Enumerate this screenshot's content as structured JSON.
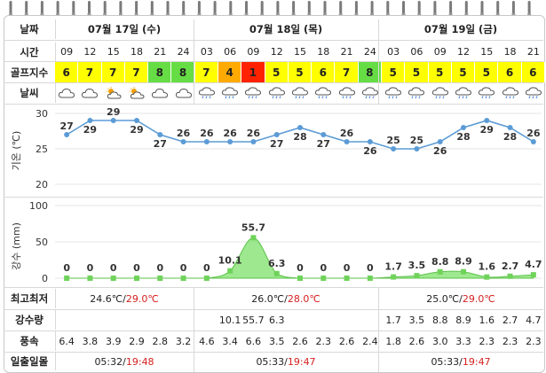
{
  "header": {
    "date_label": "날짜",
    "dates": [
      "07월 17일 (수)",
      "07월 18일 (목)",
      "07월 19일 (금)"
    ]
  },
  "time": {
    "label": "시간",
    "values": [
      "09",
      "12",
      "15",
      "18",
      "21",
      "24",
      "03",
      "06",
      "09",
      "12",
      "15",
      "18",
      "21",
      "24",
      "03",
      "06",
      "09",
      "12",
      "15",
      "18",
      "21"
    ]
  },
  "golf_index": {
    "label": "골프지수",
    "values": [
      "6",
      "7",
      "7",
      "7",
      "8",
      "8",
      "7",
      "4",
      "1",
      "5",
      "5",
      "6",
      "7",
      "8",
      "5",
      "5",
      "5",
      "5",
      "5",
      "6",
      "6"
    ],
    "colors": [
      "#ffff00",
      "#ffff00",
      "#ffff00",
      "#ffff00",
      "#66dd44",
      "#66dd44",
      "#ffff00",
      "#ffaa00",
      "#ff2200",
      "#ffff00",
      "#ffff00",
      "#ffff00",
      "#ffff00",
      "#66dd44",
      "#ffff00",
      "#ffff00",
      "#ffff00",
      "#ffff00",
      "#ffff00",
      "#ffff00",
      "#ffff00"
    ]
  },
  "weather": {
    "label": "날씨",
    "icons": [
      "cloudy-icon",
      "cloudy-icon",
      "partly-cloudy-icon",
      "partly-cloudy-icon",
      "cloudy-icon",
      "cloudy-icon",
      "rain-cloud-icon",
      "rain-cloud-icon",
      "rain-cloud-icon",
      "rain-cloud-icon",
      "rain-cloud-icon",
      "rain-cloud-icon",
      "rain-cloud-icon",
      "rain-cloud-icon",
      "rain-cloud-icon",
      "rain-cloud-icon",
      "rain-cloud-icon",
      "rain-cloud-icon",
      "rain-cloud-icon",
      "rain-cloud-icon",
      "rain-cloud-icon"
    ]
  },
  "chart_data": [
    {
      "type": "line",
      "ylabel": "기온 (℃)",
      "ylim": [
        20,
        30
      ],
      "yticks": [
        "30",
        "25",
        "20"
      ],
      "x": [
        "09",
        "12",
        "15",
        "18",
        "21",
        "24",
        "03",
        "06",
        "09",
        "12",
        "15",
        "18",
        "21",
        "24",
        "03",
        "06",
        "09",
        "12",
        "15",
        "18",
        "21"
      ],
      "values": [
        27,
        29,
        29,
        29,
        27,
        26,
        26,
        26,
        26,
        27,
        28,
        27,
        26,
        26,
        25,
        25,
        26,
        28,
        29,
        28,
        26
      ],
      "color": "#5b9bd5"
    },
    {
      "type": "area",
      "ylabel": "강수 (mm)",
      "ylim": [
        0,
        100
      ],
      "yticks": [
        "100",
        "50",
        "0"
      ],
      "x": [
        "09",
        "12",
        "15",
        "18",
        "21",
        "24",
        "03",
        "06",
        "09",
        "12",
        "15",
        "18",
        "21",
        "24",
        "03",
        "06",
        "09",
        "12",
        "15",
        "18",
        "21"
      ],
      "values": [
        0,
        0,
        0,
        0,
        0,
        0,
        0,
        10.1,
        55.7,
        6.3,
        0,
        0,
        0,
        0,
        1.7,
        3.5,
        8.8,
        8.9,
        1.6,
        2.7,
        4.7
      ],
      "labels": [
        "0",
        "0",
        "0",
        "0",
        "0",
        "0",
        "0",
        "10.1",
        "55.7",
        "6.3",
        "0",
        "0",
        "0",
        "0",
        "1.7",
        "3.5",
        "8.8",
        "8.9",
        "1.6",
        "2.7",
        "4.7"
      ],
      "color": "#7ee06a"
    }
  ],
  "temps": {
    "label": "최고최저",
    "days": [
      {
        "low": "24.6℃",
        "sep": "/",
        "high": "29.0℃"
      },
      {
        "low": "26.0℃",
        "sep": "/",
        "high": "28.0℃"
      },
      {
        "low": "25.0℃",
        "sep": "/",
        "high": "29.0℃"
      }
    ]
  },
  "rain_amount": {
    "label": "강수량",
    "values": [
      "",
      "",
      "",
      "",
      "",
      "",
      "",
      "10.1",
      "55.7",
      "6.3",
      "",
      "",
      "",
      "",
      "1.7",
      "3.5",
      "8.8",
      "8.9",
      "1.6",
      "2.7",
      "4.7"
    ]
  },
  "wind": {
    "label": "풍속",
    "values": [
      "6.4",
      "3.8",
      "3.9",
      "2.9",
      "2.8",
      "3.2",
      "4.6",
      "3.4",
      "6.6",
      "3.5",
      "2.6",
      "2.3",
      "2.6",
      "2.4",
      "1.8",
      "2.6",
      "3.0",
      "3.3",
      "2.3",
      "2.3",
      "2.3"
    ]
  },
  "sun": {
    "label": "일출일몰",
    "days": [
      {
        "rise": "05:32",
        "sep": "/",
        "set": "19:48"
      },
      {
        "rise": "05:33",
        "sep": "/",
        "set": "19:47"
      },
      {
        "rise": "05:33",
        "sep": "/",
        "set": "19:47"
      }
    ]
  }
}
